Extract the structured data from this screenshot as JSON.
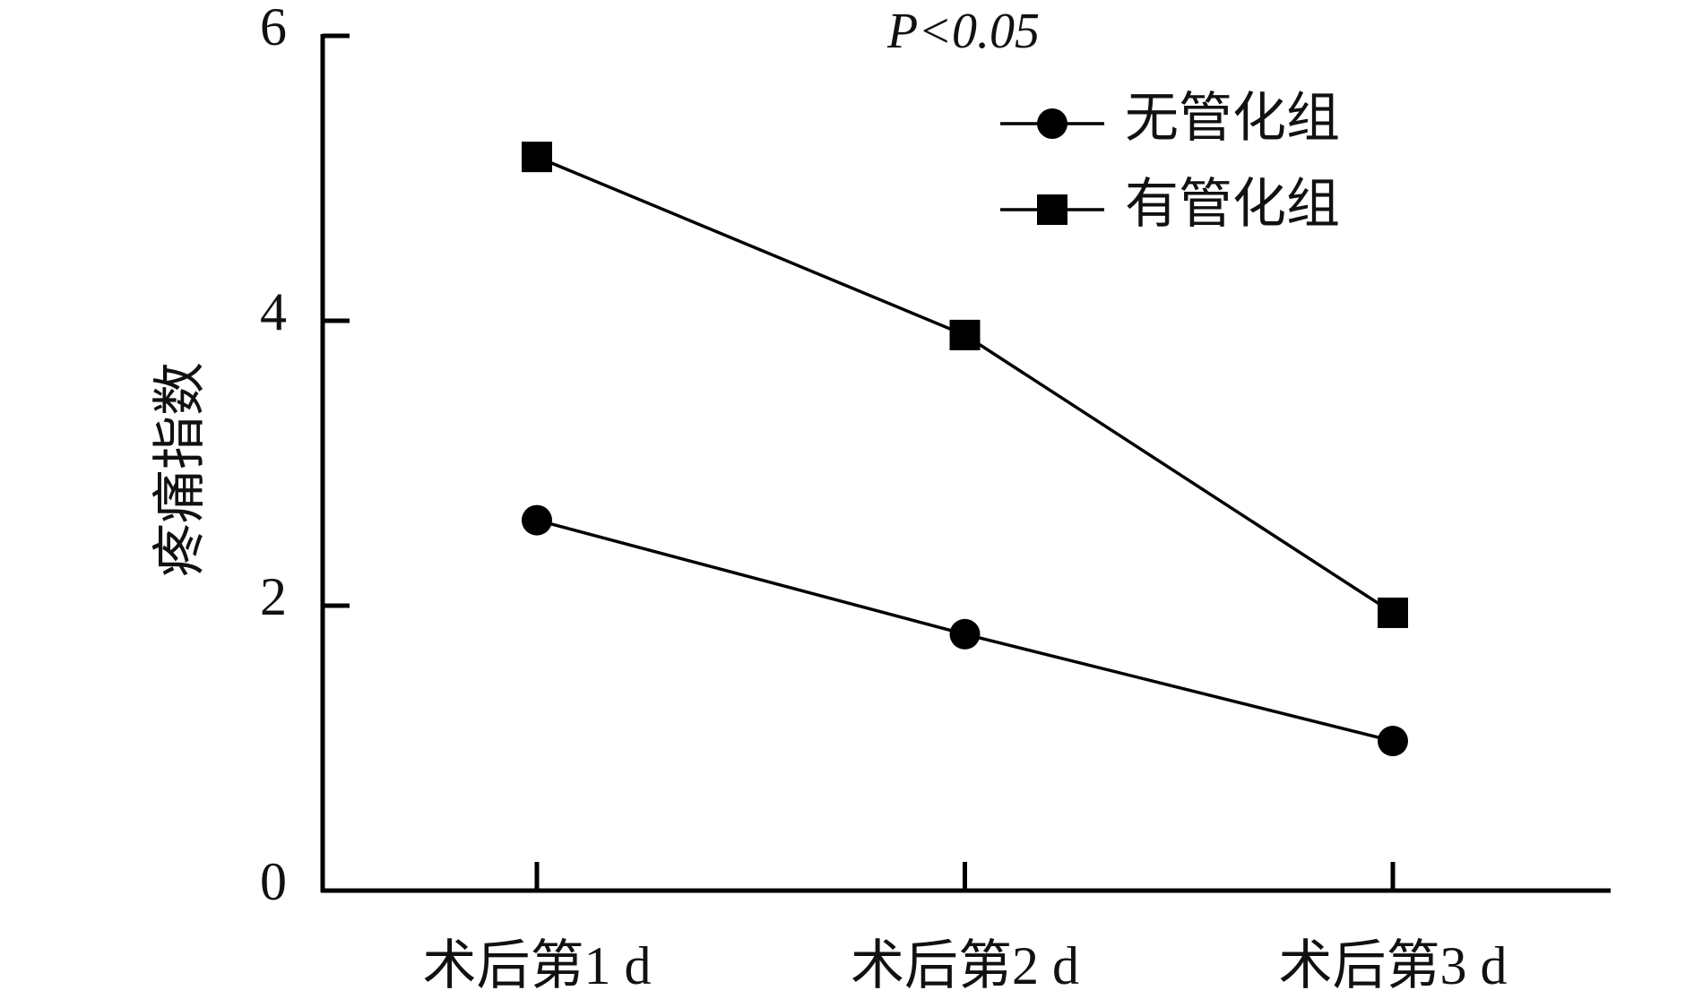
{
  "chart_data": {
    "type": "line",
    "y_label": "疼痛指数",
    "annotation": "P<0.05",
    "categories": [
      "术后第1 d",
      "术后第2 d",
      "术后第3 d"
    ],
    "series": [
      {
        "name": "无管化组",
        "color": "#000000",
        "marker": "circle",
        "values": [
          2.6,
          1.8,
          1.05
        ]
      },
      {
        "name": "有管化组",
        "color": "#000000",
        "marker": "square",
        "values": [
          5.15,
          3.9,
          1.95
        ]
      }
    ],
    "ylim": [
      0,
      6
    ],
    "yticks": [
      0,
      2,
      4,
      6
    ],
    "grid": false,
    "legend": "upper right"
  }
}
